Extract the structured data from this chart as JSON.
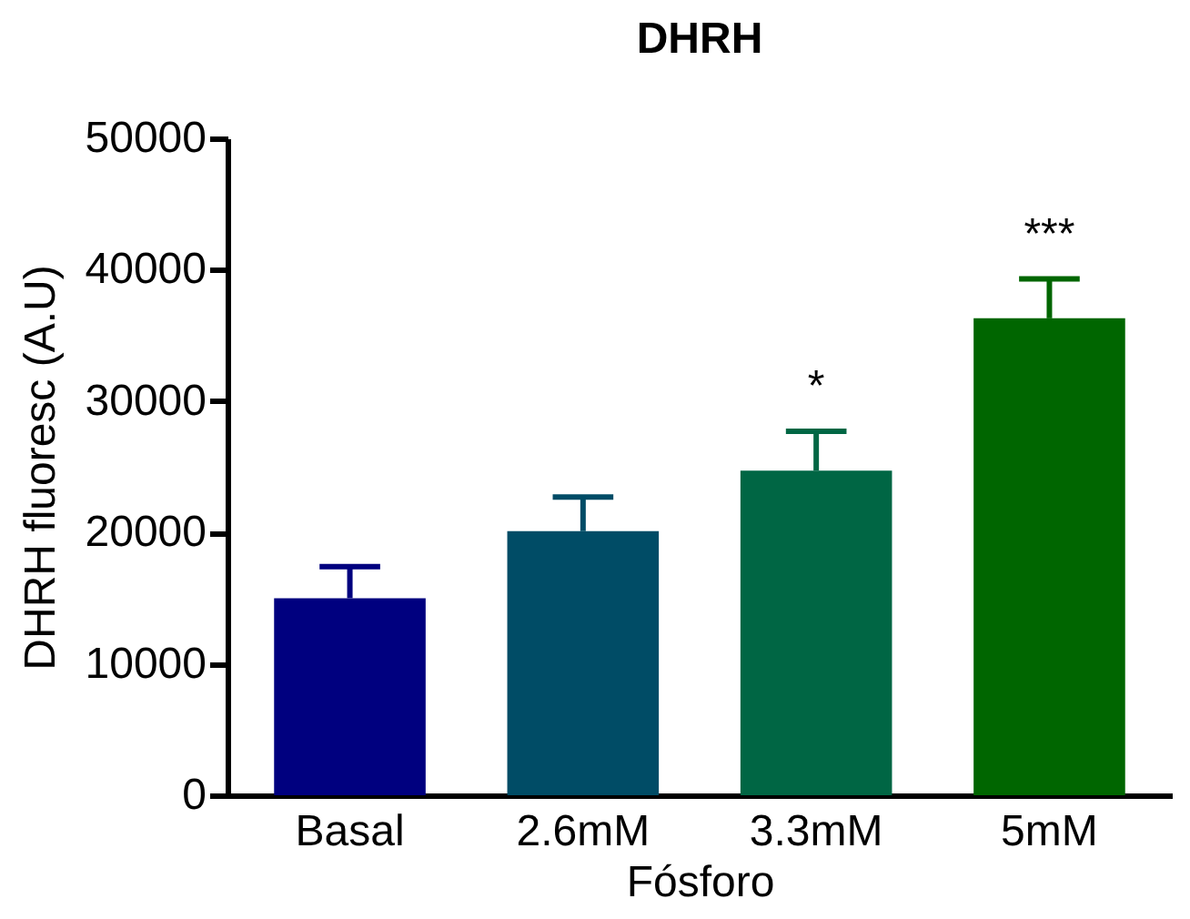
{
  "chart_data": {
    "type": "bar",
    "title": "DHRH",
    "xlabel": "Fósforo",
    "ylabel": "DHRH  fluoresc  (A.U)",
    "categories": [
      "Basal",
      "2.6mM",
      "3.3mM",
      "5mM"
    ],
    "values": [
      15000,
      20100,
      24700,
      36300
    ],
    "colors": [
      "#00007f",
      "#004c66",
      "#006644",
      "#006600"
    ],
    "errors": [
      [
        15000,
        17400
      ],
      [
        20100,
        22700
      ],
      [
        24700,
        27700
      ],
      [
        36300,
        39300
      ]
    ],
    "ylim": [
      0,
      50000
    ],
    "yticks": [
      0,
      10000,
      20000,
      30000,
      40000,
      50000
    ],
    "grid": false,
    "annotations": [
      {
        "text": "*",
        "x": "3.3mM",
        "y": 27700
      },
      {
        "text": "***",
        "x": "5mM",
        "y": 39300
      }
    ]
  }
}
